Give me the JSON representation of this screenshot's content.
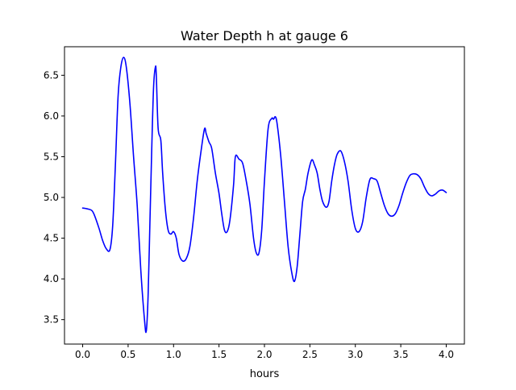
{
  "chart_data": {
    "type": "line",
    "title": "Water Depth h at gauge 6",
    "xlabel": "hours",
    "ylabel": "",
    "xlim": [
      -0.2,
      4.2
    ],
    "ylim": [
      3.2,
      6.85
    ],
    "grid": false,
    "colors": {
      "line": "#0000ff",
      "axes": "#000000",
      "background": "#ffffff"
    },
    "x_ticks": [
      {
        "value": 0.0,
        "label": "0.0"
      },
      {
        "value": 0.5,
        "label": "0.5"
      },
      {
        "value": 1.0,
        "label": "1.0"
      },
      {
        "value": 1.5,
        "label": "1.5"
      },
      {
        "value": 2.0,
        "label": "2.0"
      },
      {
        "value": 2.5,
        "label": "2.5"
      },
      {
        "value": 3.0,
        "label": "3.0"
      },
      {
        "value": 3.5,
        "label": "3.5"
      },
      {
        "value": 4.0,
        "label": "4.0"
      }
    ],
    "y_ticks": [
      {
        "value": 3.5,
        "label": "3.5"
      },
      {
        "value": 4.0,
        "label": "4.0"
      },
      {
        "value": 4.5,
        "label": "4.5"
      },
      {
        "value": 5.0,
        "label": "5.0"
      },
      {
        "value": 5.5,
        "label": "5.5"
      },
      {
        "value": 6.0,
        "label": "6.0"
      },
      {
        "value": 6.5,
        "label": "6.5"
      }
    ],
    "series": [
      {
        "x": [
          0.0,
          0.05,
          0.1,
          0.13,
          0.18,
          0.22,
          0.26,
          0.3,
          0.33,
          0.36,
          0.39,
          0.42,
          0.45,
          0.48,
          0.52,
          0.56,
          0.6,
          0.64,
          0.68,
          0.7,
          0.72,
          0.74,
          0.76,
          0.78,
          0.8,
          0.81,
          0.83,
          0.86,
          0.88,
          0.91,
          0.94,
          0.97,
          1.0,
          1.03,
          1.06,
          1.1,
          1.14,
          1.18,
          1.22,
          1.26,
          1.3,
          1.34,
          1.36,
          1.39,
          1.42,
          1.46,
          1.5,
          1.53,
          1.56,
          1.59,
          1.62,
          1.66,
          1.68,
          1.72,
          1.76,
          1.8,
          1.84,
          1.88,
          1.91,
          1.94,
          1.97,
          2.0,
          2.04,
          2.08,
          2.1,
          2.12,
          2.14,
          2.18,
          2.22,
          2.26,
          2.3,
          2.33,
          2.36,
          2.39,
          2.42,
          2.45,
          2.48,
          2.52,
          2.55,
          2.58,
          2.61,
          2.64,
          2.68,
          2.71,
          2.74,
          2.77,
          2.8,
          2.84,
          2.88,
          2.92,
          2.96,
          3.0,
          3.04,
          3.08,
          3.12,
          3.16,
          3.2,
          3.24,
          3.28,
          3.32,
          3.36,
          3.4,
          3.44,
          3.48,
          3.52,
          3.56,
          3.6,
          3.64,
          3.68,
          3.72,
          3.76,
          3.8,
          3.84,
          3.88,
          3.92,
          3.96,
          4.0
        ],
        "y": [
          4.87,
          4.86,
          4.84,
          4.78,
          4.62,
          4.47,
          4.37,
          4.36,
          4.65,
          5.4,
          6.25,
          6.6,
          6.72,
          6.6,
          6.15,
          5.5,
          4.9,
          4.1,
          3.5,
          3.36,
          3.8,
          4.7,
          5.6,
          6.35,
          6.6,
          6.5,
          5.85,
          5.7,
          5.3,
          4.85,
          4.6,
          4.55,
          4.58,
          4.5,
          4.3,
          4.22,
          4.25,
          4.4,
          4.75,
          5.2,
          5.55,
          5.84,
          5.78,
          5.68,
          5.6,
          5.3,
          5.05,
          4.8,
          4.6,
          4.58,
          4.72,
          5.15,
          5.5,
          5.47,
          5.42,
          5.2,
          4.92,
          4.5,
          4.32,
          4.32,
          4.6,
          5.2,
          5.84,
          5.97,
          5.96,
          5.99,
          5.9,
          5.5,
          4.95,
          4.4,
          4.08,
          3.97,
          4.15,
          4.55,
          4.95,
          5.1,
          5.3,
          5.46,
          5.4,
          5.3,
          5.1,
          4.95,
          4.88,
          4.95,
          5.2,
          5.4,
          5.53,
          5.57,
          5.44,
          5.2,
          4.85,
          4.62,
          4.58,
          4.7,
          5.0,
          5.22,
          5.23,
          5.2,
          5.05,
          4.9,
          4.8,
          4.77,
          4.8,
          4.9,
          5.05,
          5.18,
          5.27,
          5.29,
          5.28,
          5.23,
          5.13,
          5.05,
          5.02,
          5.04,
          5.08,
          5.09,
          5.06
        ]
      }
    ]
  }
}
